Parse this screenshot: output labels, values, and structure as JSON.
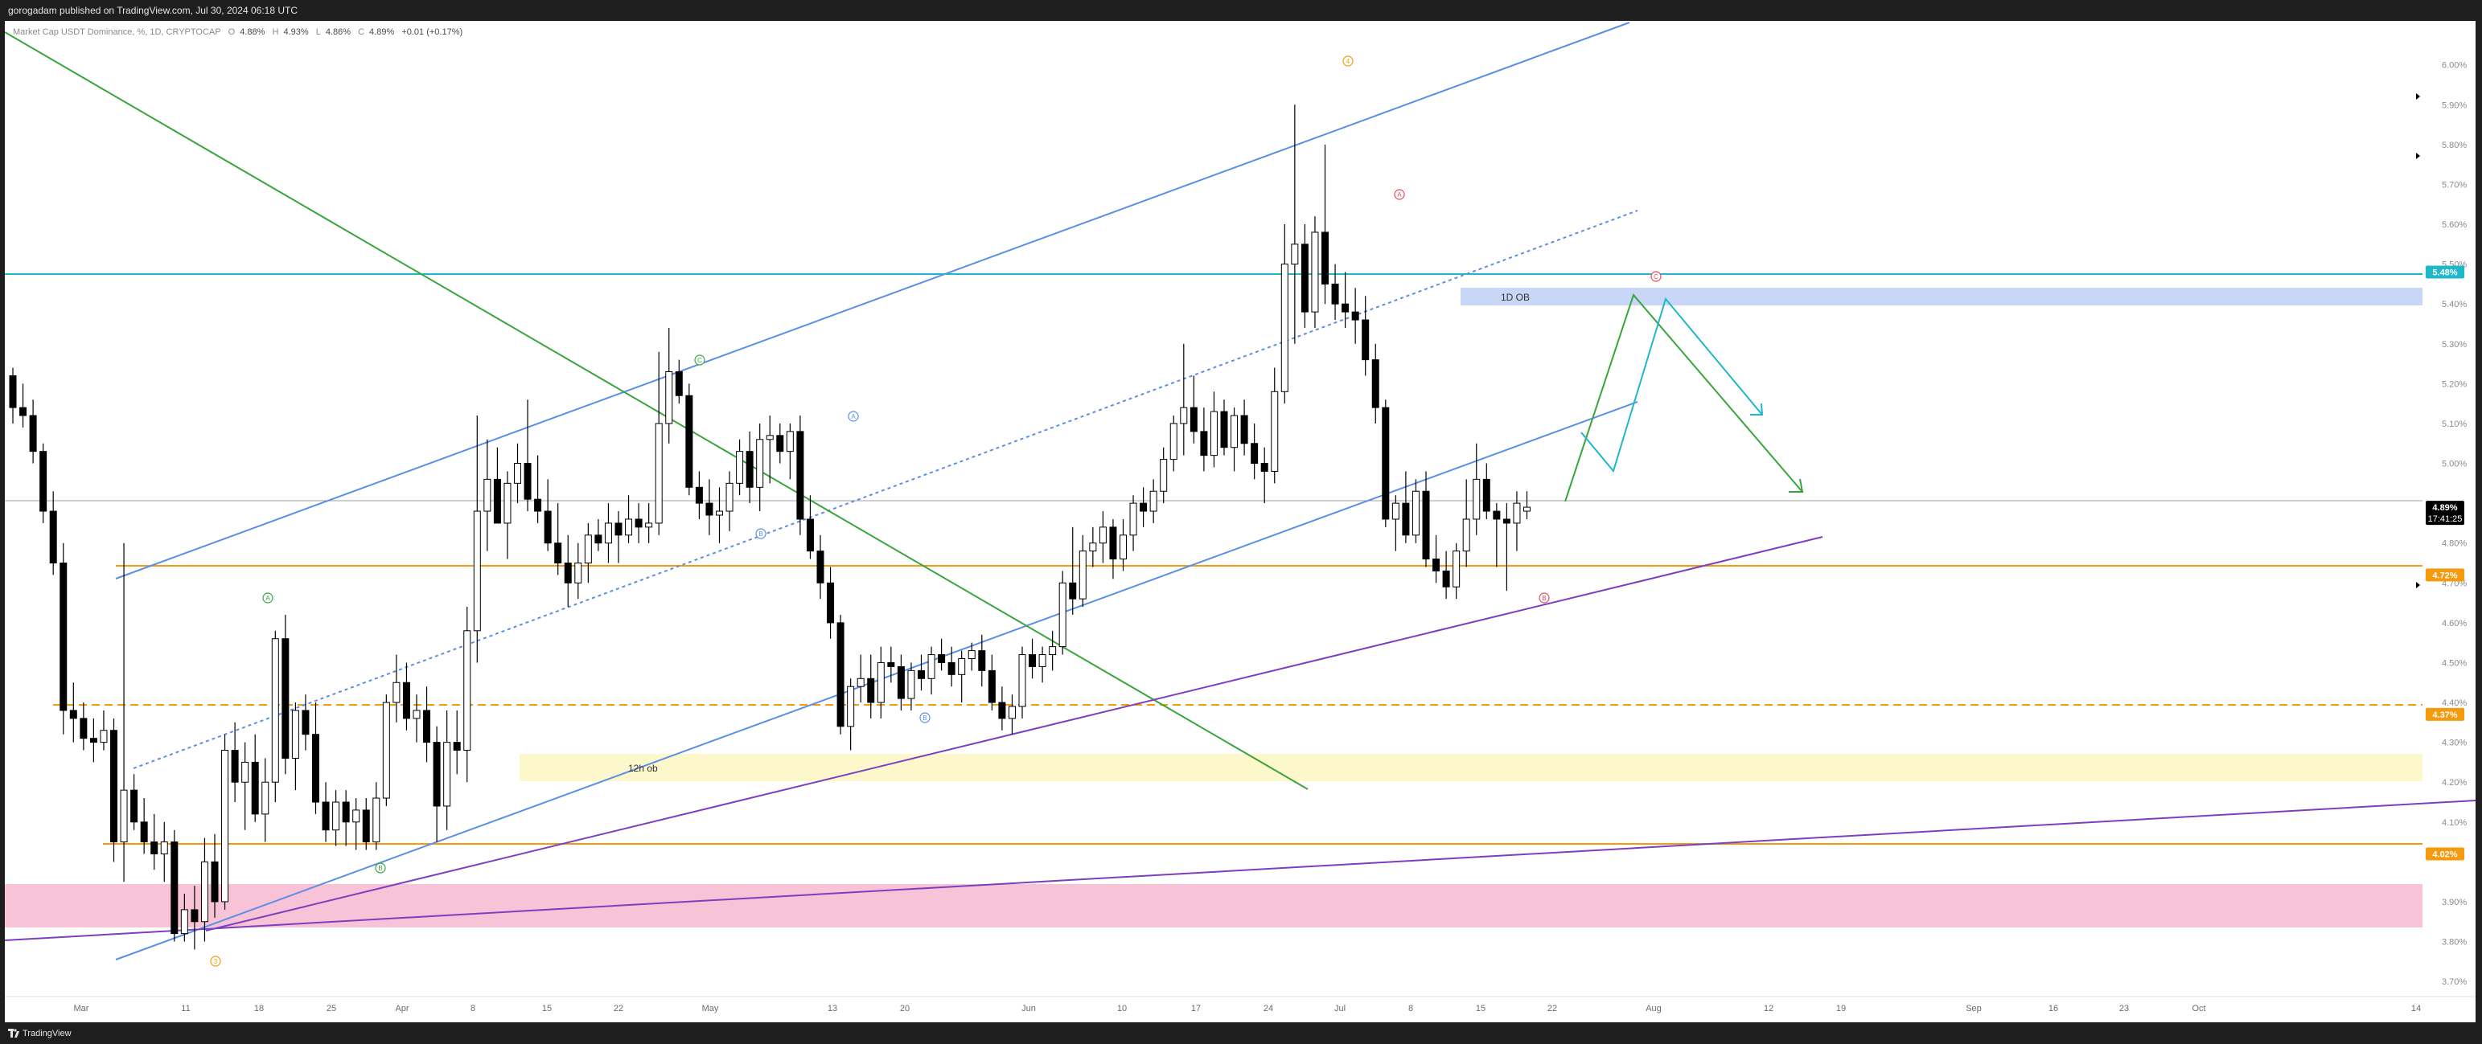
{
  "header": {
    "published": "gorogadam published on TradingView.com, Jul 30, 2024 06:18 UTC"
  },
  "legend": {
    "symbol": "Market Cap USDT Dominance, %, 1D, CRYPTOCAP",
    "open_label": "O",
    "open": "4.88%",
    "high_label": "H",
    "high": "4.93%",
    "low_label": "L",
    "low": "4.86%",
    "close_label": "C",
    "close": "4.89%",
    "change": "+0.01 (+0.17%)"
  },
  "footer": {
    "brand": "TradingView"
  },
  "colors": {
    "up": "#ffffff",
    "down": "#000000",
    "wick": "#000000",
    "channel": "#5b8fe6",
    "green": "#3aa53a",
    "purple": "#7b3fbf",
    "orange": "#f59a0c",
    "cyan": "#1fb8c8",
    "pink_zone": "#f8c3d6",
    "yellow_zone": "#fdf8cc",
    "ob_zone": "#c8d6f8"
  },
  "chart_data": {
    "type": "candlestick",
    "y_unit": "%",
    "ylim": [
      3.67,
      6.07
    ],
    "y_ticks": [
      "6.00%",
      "5.90%",
      "5.80%",
      "5.70%",
      "5.60%",
      "5.50%",
      "5.40%",
      "5.30%",
      "5.20%",
      "5.10%",
      "5.00%",
      "4.80%",
      "4.70%",
      "4.60%",
      "4.50%",
      "4.40%",
      "4.30%",
      "4.20%",
      "4.10%",
      "3.90%",
      "3.80%",
      "3.70%"
    ],
    "x_labels": [
      "Mar",
      "11",
      "18",
      "25",
      "Apr",
      "8",
      "15",
      "22",
      "May",
      "13",
      "20",
      "Jun",
      "10",
      "17",
      "24",
      "Jul",
      "8",
      "15",
      "22",
      "Aug",
      "12",
      "19",
      "Sep",
      "16",
      "23",
      "Oct",
      "14"
    ],
    "price_labels": [
      {
        "text": "5.48%",
        "color": "#1fb8c8"
      },
      {
        "text": "4.89%",
        "sub": "17:41:25",
        "color": "#000000"
      },
      {
        "text": "4.72%",
        "color": "#f59a0c"
      },
      {
        "text": "4.37%",
        "color": "#f59a0c"
      },
      {
        "text": "4.02%",
        "color": "#f59a0c"
      }
    ],
    "zone_labels": [
      "1D OB",
      "12h ob"
    ],
    "wave_labels": [
      "A",
      "B",
      "C",
      "3",
      "B",
      "A",
      "B",
      "C",
      "4",
      "A",
      "B",
      "C"
    ],
    "candles": [
      [
        5.22,
        5.24,
        5.1,
        5.14
      ],
      [
        5.14,
        5.2,
        5.09,
        5.12
      ],
      [
        5.12,
        5.16,
        5.0,
        5.03
      ],
      [
        5.03,
        5.05,
        4.85,
        4.88
      ],
      [
        4.88,
        4.93,
        4.72,
        4.75
      ],
      [
        4.75,
        4.8,
        4.32,
        4.38
      ],
      [
        4.38,
        4.45,
        4.3,
        4.36
      ],
      [
        4.36,
        4.4,
        4.28,
        4.31
      ],
      [
        4.31,
        4.36,
        4.25,
        4.3
      ],
      [
        4.3,
        4.38,
        4.28,
        4.33
      ],
      [
        4.33,
        4.36,
        4.0,
        4.05
      ],
      [
        4.05,
        4.8,
        3.95,
        4.18
      ],
      [
        4.18,
        4.22,
        4.08,
        4.1
      ],
      [
        4.1,
        4.16,
        4.02,
        4.05
      ],
      [
        4.05,
        4.12,
        3.98,
        4.02
      ],
      [
        4.02,
        4.1,
        3.95,
        4.05
      ],
      [
        4.05,
        4.08,
        3.8,
        3.82
      ],
      [
        3.82,
        3.92,
        3.8,
        3.88
      ],
      [
        3.88,
        3.94,
        3.78,
        3.85
      ],
      [
        3.85,
        4.06,
        3.8,
        4.0
      ],
      [
        4.0,
        4.07,
        3.86,
        3.9
      ],
      [
        3.9,
        4.32,
        3.88,
        4.28
      ],
      [
        4.28,
        4.35,
        4.15,
        4.2
      ],
      [
        4.2,
        4.3,
        4.08,
        4.25
      ],
      [
        4.25,
        4.32,
        4.1,
        4.12
      ],
      [
        4.12,
        4.26,
        4.05,
        4.2
      ],
      [
        4.2,
        4.58,
        4.15,
        4.56
      ],
      [
        4.56,
        4.62,
        4.22,
        4.26
      ],
      [
        4.26,
        4.4,
        4.18,
        4.38
      ],
      [
        4.38,
        4.42,
        4.28,
        4.32
      ],
      [
        4.32,
        4.4,
        4.12,
        4.15
      ],
      [
        4.15,
        4.2,
        4.05,
        4.08
      ],
      [
        4.08,
        4.18,
        4.04,
        4.15
      ],
      [
        4.15,
        4.18,
        4.04,
        4.1
      ],
      [
        4.1,
        4.16,
        4.03,
        4.13
      ],
      [
        4.13,
        4.16,
        4.03,
        4.05
      ],
      [
        4.05,
        4.2,
        4.03,
        4.16
      ],
      [
        4.16,
        4.42,
        4.14,
        4.4
      ],
      [
        4.4,
        4.52,
        4.35,
        4.45
      ],
      [
        4.45,
        4.5,
        4.33,
        4.36
      ],
      [
        4.36,
        4.42,
        4.3,
        4.38
      ],
      [
        4.38,
        4.44,
        4.25,
        4.3
      ],
      [
        4.3,
        4.34,
        4.05,
        4.14
      ],
      [
        4.14,
        4.38,
        4.08,
        4.3
      ],
      [
        4.3,
        4.38,
        4.22,
        4.28
      ],
      [
        4.28,
        4.64,
        4.2,
        4.58
      ],
      [
        4.58,
        5.12,
        4.5,
        4.88
      ],
      [
        4.88,
        5.06,
        4.78,
        4.96
      ],
      [
        4.96,
        5.04,
        4.85,
        4.85
      ],
      [
        4.85,
        4.98,
        4.76,
        4.95
      ],
      [
        4.95,
        5.05,
        4.9,
        5.0
      ],
      [
        5.0,
        5.16,
        4.88,
        4.91
      ],
      [
        4.91,
        5.02,
        4.85,
        4.88
      ],
      [
        4.88,
        4.96,
        4.78,
        4.8
      ],
      [
        4.8,
        4.9,
        4.72,
        4.75
      ],
      [
        4.75,
        4.82,
        4.64,
        4.7
      ],
      [
        4.7,
        4.8,
        4.66,
        4.75
      ],
      [
        4.75,
        4.85,
        4.7,
        4.82
      ],
      [
        4.82,
        4.86,
        4.78,
        4.8
      ],
      [
        4.8,
        4.9,
        4.75,
        4.85
      ],
      [
        4.85,
        4.88,
        4.75,
        4.82
      ],
      [
        4.82,
        4.92,
        4.8,
        4.86
      ],
      [
        4.86,
        4.9,
        4.8,
        4.84
      ],
      [
        4.84,
        4.9,
        4.8,
        4.85
      ],
      [
        4.85,
        5.28,
        4.82,
        5.1
      ],
      [
        5.1,
        5.34,
        5.05,
        5.23
      ],
      [
        5.23,
        5.26,
        5.15,
        5.17
      ],
      [
        5.17,
        5.2,
        4.92,
        4.94
      ],
      [
        4.94,
        4.98,
        4.86,
        4.9
      ],
      [
        4.9,
        4.96,
        4.82,
        4.87
      ],
      [
        4.87,
        4.94,
        4.8,
        4.88
      ],
      [
        4.88,
        4.98,
        4.83,
        4.95
      ],
      [
        4.95,
        5.06,
        4.92,
        5.03
      ],
      [
        5.03,
        5.08,
        4.9,
        4.94
      ],
      [
        4.94,
        5.1,
        4.88,
        5.06
      ],
      [
        5.06,
        5.12,
        4.95,
        5.07
      ],
      [
        5.07,
        5.1,
        5.0,
        5.03
      ],
      [
        5.03,
        5.1,
        4.96,
        5.08
      ],
      [
        5.08,
        5.12,
        4.82,
        4.86
      ],
      [
        4.86,
        4.92,
        4.76,
        4.78
      ],
      [
        4.78,
        4.82,
        4.66,
        4.7
      ],
      [
        4.7,
        4.74,
        4.56,
        4.6
      ],
      [
        4.6,
        4.62,
        4.32,
        4.34
      ],
      [
        4.34,
        4.46,
        4.28,
        4.44
      ],
      [
        4.44,
        4.52,
        4.4,
        4.46
      ],
      [
        4.46,
        4.52,
        4.36,
        4.4
      ],
      [
        4.4,
        4.54,
        4.36,
        4.5
      ],
      [
        4.5,
        4.54,
        4.45,
        4.49
      ],
      [
        4.49,
        4.52,
        4.38,
        4.41
      ],
      [
        4.41,
        4.5,
        4.38,
        4.48
      ],
      [
        4.48,
        4.52,
        4.43,
        4.46
      ],
      [
        4.46,
        4.54,
        4.42,
        4.52
      ],
      [
        4.52,
        4.56,
        4.48,
        4.5
      ],
      [
        4.5,
        4.54,
        4.44,
        4.47
      ],
      [
        4.47,
        4.53,
        4.4,
        4.51
      ],
      [
        4.51,
        4.55,
        4.48,
        4.53
      ],
      [
        4.53,
        4.57,
        4.44,
        4.48
      ],
      [
        4.48,
        4.52,
        4.38,
        4.4
      ],
      [
        4.4,
        4.44,
        4.33,
        4.36
      ],
      [
        4.36,
        4.42,
        4.32,
        4.39
      ],
      [
        4.39,
        4.54,
        4.36,
        4.52
      ],
      [
        4.52,
        4.56,
        4.46,
        4.49
      ],
      [
        4.49,
        4.54,
        4.45,
        4.52
      ],
      [
        4.52,
        4.58,
        4.48,
        4.54
      ],
      [
        4.54,
        4.73,
        4.52,
        4.7
      ],
      [
        4.7,
        4.84,
        4.62,
        4.66
      ],
      [
        4.66,
        4.82,
        4.64,
        4.78
      ],
      [
        4.78,
        4.84,
        4.74,
        4.8
      ],
      [
        4.8,
        4.88,
        4.75,
        4.84
      ],
      [
        4.84,
        4.86,
        4.71,
        4.76
      ],
      [
        4.76,
        4.86,
        4.73,
        4.82
      ],
      [
        4.82,
        4.92,
        4.78,
        4.9
      ],
      [
        4.9,
        4.94,
        4.84,
        4.88
      ],
      [
        4.88,
        4.96,
        4.85,
        4.93
      ],
      [
        4.93,
        5.04,
        4.9,
        5.01
      ],
      [
        5.01,
        5.12,
        4.98,
        5.1
      ],
      [
        5.1,
        5.3,
        5.02,
        5.14
      ],
      [
        5.14,
        5.22,
        5.05,
        5.08
      ],
      [
        5.08,
        5.14,
        4.98,
        5.02
      ],
      [
        5.02,
        5.18,
        4.99,
        5.13
      ],
      [
        5.13,
        5.16,
        5.02,
        5.04
      ],
      [
        5.04,
        5.14,
        4.98,
        5.12
      ],
      [
        5.12,
        5.16,
        5.02,
        5.05
      ],
      [
        5.05,
        5.1,
        4.96,
        5.0
      ],
      [
        5.0,
        5.04,
        4.9,
        4.98
      ],
      [
        4.98,
        5.24,
        4.95,
        5.18
      ],
      [
        5.18,
        5.6,
        5.15,
        5.5
      ],
      [
        5.5,
        5.9,
        5.3,
        5.55
      ],
      [
        5.55,
        5.6,
        5.34,
        5.38
      ],
      [
        5.38,
        5.62,
        5.34,
        5.58
      ],
      [
        5.58,
        5.8,
        5.4,
        5.45
      ],
      [
        5.45,
        5.5,
        5.36,
        5.4
      ],
      [
        5.4,
        5.48,
        5.34,
        5.38
      ],
      [
        5.38,
        5.44,
        5.3,
        5.36
      ],
      [
        5.36,
        5.42,
        5.22,
        5.26
      ],
      [
        5.26,
        5.3,
        5.1,
        5.14
      ],
      [
        5.14,
        5.16,
        4.84,
        4.86
      ],
      [
        4.86,
        4.92,
        4.78,
        4.9
      ],
      [
        4.9,
        4.98,
        4.8,
        4.82
      ],
      [
        4.82,
        4.96,
        4.8,
        4.93
      ],
      [
        4.93,
        4.98,
        4.74,
        4.76
      ],
      [
        4.76,
        4.82,
        4.7,
        4.73
      ],
      [
        4.73,
        4.78,
        4.66,
        4.69
      ],
      [
        4.69,
        4.8,
        4.66,
        4.78
      ],
      [
        4.78,
        4.96,
        4.74,
        4.86
      ],
      [
        4.86,
        5.05,
        4.82,
        4.96
      ],
      [
        4.96,
        5.0,
        4.86,
        4.88
      ],
      [
        4.88,
        4.9,
        4.74,
        4.86
      ],
      [
        4.86,
        4.9,
        4.68,
        4.85
      ],
      [
        4.85,
        4.93,
        4.78,
        4.9
      ],
      [
        4.88,
        4.93,
        4.86,
        4.89
      ]
    ]
  }
}
